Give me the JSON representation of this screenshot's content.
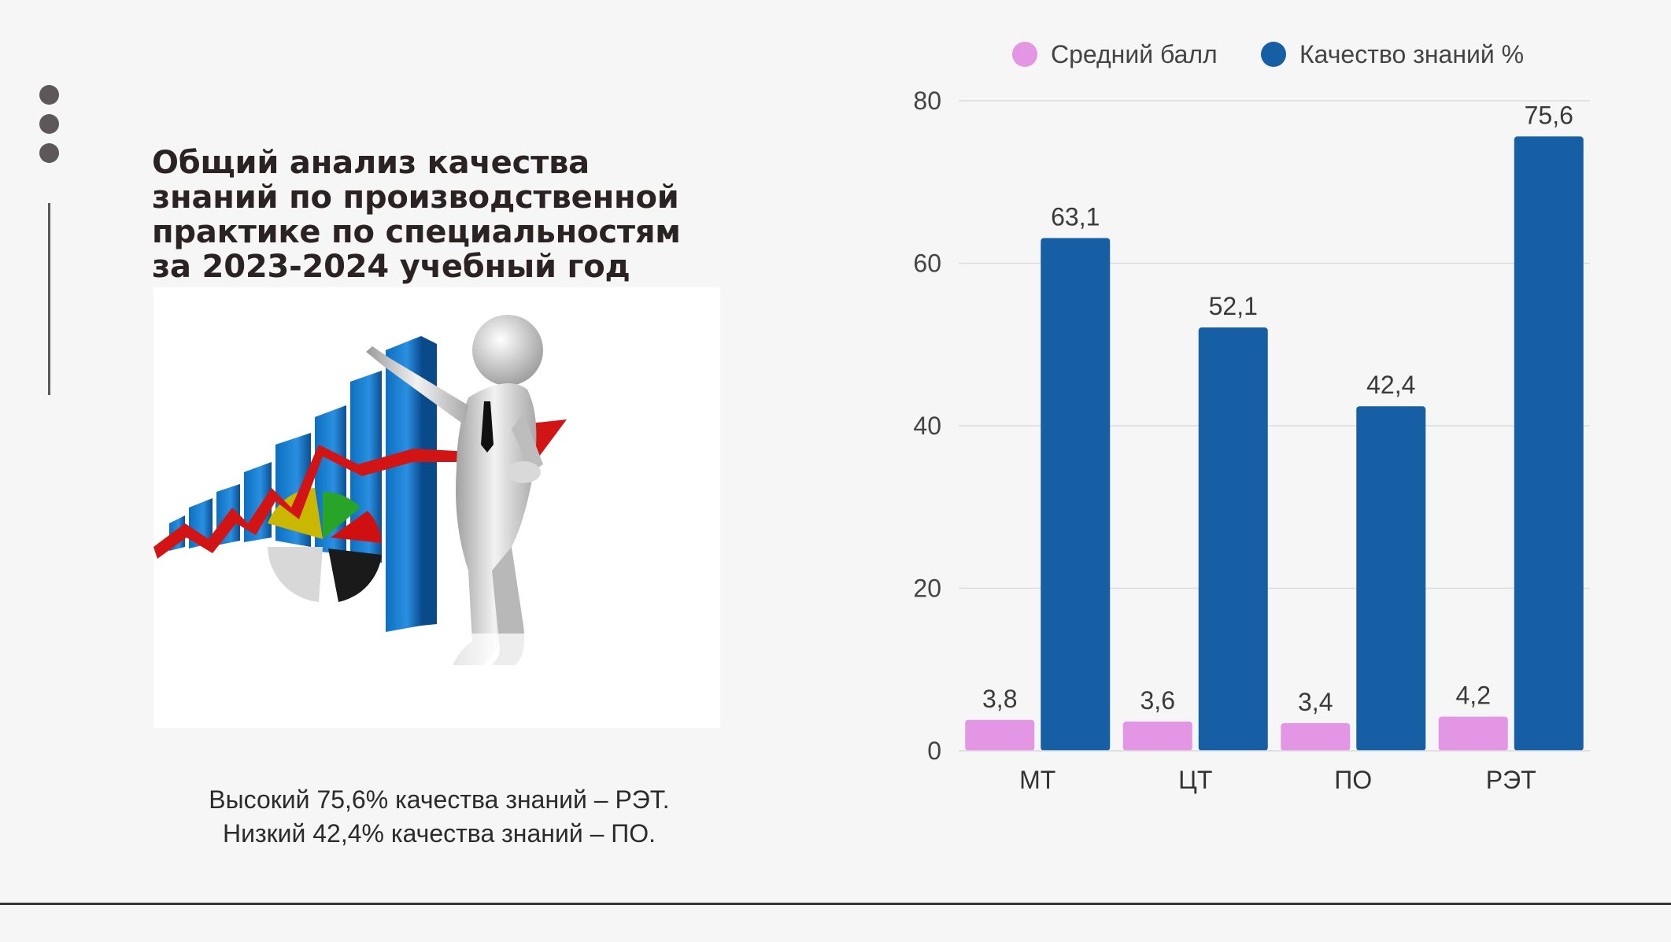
{
  "slide": {
    "title_lines": [
      "Общий анализ качества",
      "знаний по производственной",
      "практике по специальностям",
      "за 2023-2024 учебный год"
    ],
    "caption_lines": [
      "Высокий 75,6% качества знаний – РЭТ.",
      "Низкий 42,4% качества знаний – ПО."
    ]
  },
  "colors": {
    "series_avg": "#e396e3",
    "series_quality": "#175fa5",
    "text_dark": "#2b2224",
    "gridline": "#dcdcdc"
  },
  "chart_data": {
    "type": "bar",
    "categories": [
      "МТ",
      "ЦТ",
      "ПО",
      "РЭТ"
    ],
    "series": [
      {
        "name": "Средний балл",
        "values": [
          3.8,
          3.6,
          3.4,
          4.2
        ],
        "labels": [
          "3,8",
          "3,6",
          "3,4",
          "4,2"
        ]
      },
      {
        "name": "Качество знаний %",
        "values": [
          63.1,
          52.1,
          42.4,
          75.6
        ],
        "labels": [
          "63,1",
          "52,1",
          "42,4",
          "75,6"
        ]
      }
    ],
    "ylim": [
      0,
      80
    ],
    "yticks": [
      0,
      20,
      40,
      60,
      80
    ],
    "legend": "top",
    "grid": true
  }
}
